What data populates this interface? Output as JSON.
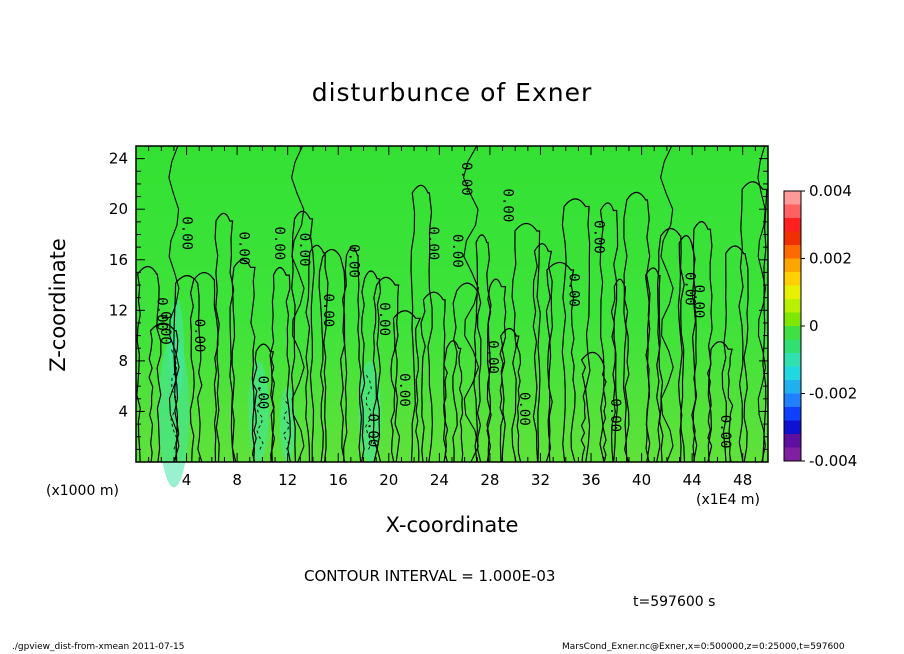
{
  "chart_data": {
    "type": "heatmap",
    "title": "disturbunce of Exner",
    "xlabel": "X-coordinate",
    "ylabel": "Z-coordinate",
    "x_unit_left": "(x1000 m)",
    "x_unit_right": "(x1E4 m)",
    "xlim": [
      0,
      50
    ],
    "ylim": [
      0,
      25
    ],
    "x_ticks": [
      4,
      8,
      12,
      16,
      20,
      24,
      28,
      32,
      36,
      40,
      44,
      48
    ],
    "y_ticks": [
      4,
      8,
      12,
      16,
      20,
      24
    ],
    "colorbar": {
      "range": [
        -0.004,
        0.004
      ],
      "tick_labels": [
        "0.004",
        "0.002",
        "0",
        "-0.002",
        "-0.004"
      ],
      "tick_values": [
        0.004,
        0.002,
        0,
        -0.002,
        -0.004
      ]
    },
    "contour_interval": "CONTOUR INTERVAL = 1.000E-03",
    "time_label": "t=597600 s",
    "contour_labels": [
      {
        "text": "0.00",
        "x": 2.3,
        "z": 10.6
      },
      {
        "text": "0.00",
        "x": 2.0,
        "z": 11.7
      },
      {
        "text": "0.00",
        "x": 4.0,
        "z": 18.1
      },
      {
        "text": "0.00",
        "x": 5.0,
        "z": 10.0
      },
      {
        "text": "0.00",
        "x": 8.5,
        "z": 16.9
      },
      {
        "text": "0.00",
        "x": 10.0,
        "z": 5.5
      },
      {
        "text": "0.00",
        "x": 11.3,
        "z": 17.3
      },
      {
        "text": "0.00",
        "x": 13.3,
        "z": 16.8
      },
      {
        "text": "0.00",
        "x": 15.2,
        "z": 12.0
      },
      {
        "text": "0.00",
        "x": 17.2,
        "z": 15.9
      },
      {
        "text": "0.00",
        "x": 18.7,
        "z": 2.5
      },
      {
        "text": "0.00",
        "x": 19.6,
        "z": 11.3
      },
      {
        "text": "0.00",
        "x": 21.2,
        "z": 5.7
      },
      {
        "text": "0.00",
        "x": 23.5,
        "z": 17.3
      },
      {
        "text": "0.00",
        "x": 25.4,
        "z": 16.7
      },
      {
        "text": "0.00",
        "x": 26.1,
        "z": 22.4
      },
      {
        "text": "0.00",
        "x": 28.2,
        "z": 8.3
      },
      {
        "text": "0.00",
        "x": 29.4,
        "z": 20.3
      },
      {
        "text": "0.00",
        "x": 30.7,
        "z": 4.2
      },
      {
        "text": "0.00",
        "x": 34.6,
        "z": 13.6
      },
      {
        "text": "0.00",
        "x": 36.6,
        "z": 17.8
      },
      {
        "text": "0.00",
        "x": 37.9,
        "z": 3.7
      },
      {
        "text": "0.00",
        "x": 43.8,
        "z": 13.7
      },
      {
        "text": "0.00",
        "x": 44.5,
        "z": 12.7
      },
      {
        "text": "0.00",
        "x": 46.6,
        "z": 2.4
      }
    ]
  },
  "footer": {
    "left": "./gpview_dist-from-xmean   2011-07-15",
    "right": "MarsCond_Exner.nc@Exner,x=0:500000,z=0:25000,t=597600"
  }
}
